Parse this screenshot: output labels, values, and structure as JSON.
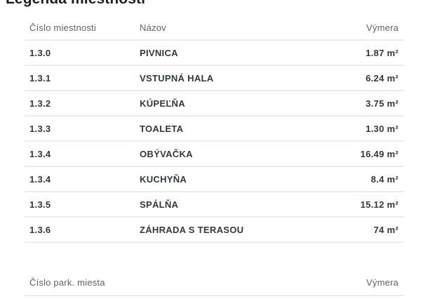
{
  "page": {
    "title": "Legenda miestností"
  },
  "colors": {
    "background": "#ffffff",
    "title_text": "#1b1e22",
    "row_text": "#33383e",
    "header_text": "#5f6368",
    "divider": "#ececec"
  },
  "rooms_table": {
    "headers": {
      "number": "Číslo miestnosti",
      "name": "Názov",
      "area": "Výmera"
    },
    "rows": [
      {
        "number": "1.3.0",
        "name": "PIVNICA",
        "area": "1.87 m²"
      },
      {
        "number": "1.3.1",
        "name": "VSTUPNÁ HALA",
        "area": "6.24 m²"
      },
      {
        "number": "1.3.2",
        "name": "KÚPEĽŇA",
        "area": "3.75 m²"
      },
      {
        "number": "1.3.3",
        "name": "TOALETA",
        "area": "1.30 m²"
      },
      {
        "number": "1.3.4",
        "name": "OBÝVAČKA",
        "area": "16.49 m²"
      },
      {
        "number": "1.3.4",
        "name": "KUCHYŇA",
        "area": "8.4 m²"
      },
      {
        "number": "1.3.5",
        "name": "SPÁLŇA",
        "area": "15.12 m²"
      },
      {
        "number": "1.3.6",
        "name": "ZÁHRADA S TERASOU",
        "area": "74 m²"
      }
    ]
  },
  "parking_table": {
    "headers": {
      "number": "Číslo park. miesta",
      "area": "Výmera"
    }
  }
}
